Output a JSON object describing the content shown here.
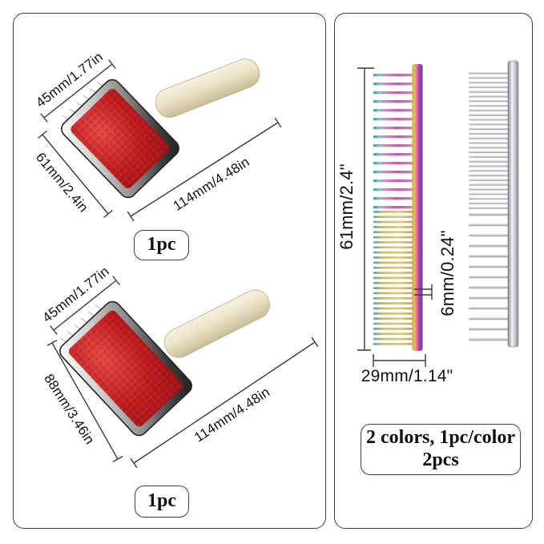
{
  "left_panel": {
    "brush_top": {
      "width_label": "45mm/1.77in",
      "height_label": "61mm/2.4in",
      "length_label": "114mm/4.48in",
      "badge": "1pc"
    },
    "brush_bottom": {
      "width_label": "45mm/1.77in",
      "height_label": "88mm/3.46in",
      "length_label": "114mm/4.48in",
      "badge": "1pc"
    }
  },
  "right_panel": {
    "length_label": "61mm/2.4\"",
    "pin_label": "6mm/0.24\"",
    "width_label": "29mm/1.14\"",
    "badge_line1": "2 colors, 1pc/color",
    "badge_line2": "2pcs"
  },
  "colors": {
    "pad_red": "#c01c1f",
    "pad_red_dark": "#8f1013",
    "handle_beige": "#ece4cc",
    "chrome_light": "#e8e8e8",
    "chrome_dark": "#2b2b2b",
    "rainbow_teal": "#3f9aa8",
    "rainbow_pink": "#d85aa8",
    "rainbow_purple": "#8a4ec0",
    "rainbow_gold": "#cbb066",
    "rainbow_blue": "#3a57c4",
    "steel_silver": "#c3c3c9",
    "dimension_line": "#3a3a3a"
  }
}
